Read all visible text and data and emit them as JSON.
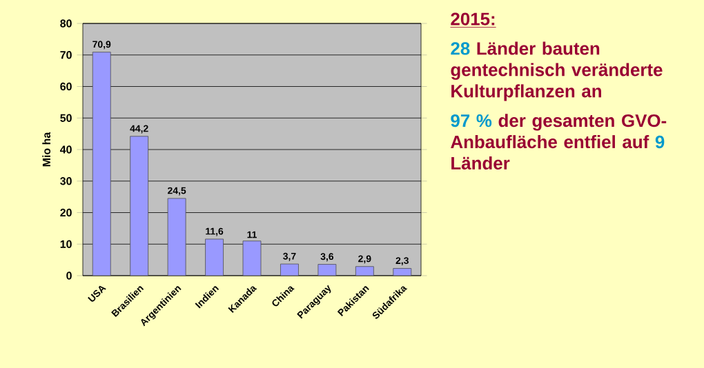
{
  "chart_data": {
    "type": "bar",
    "title": "2015:",
    "ylabel": "Mio ha",
    "categories": [
      "USA",
      "Brasilien",
      "Argentinien",
      "Indien",
      "Kanada",
      "China",
      "Paraguay",
      "Pakistan",
      "Südafrika"
    ],
    "values": [
      70.9,
      44.2,
      24.5,
      11.6,
      11,
      3.7,
      3.6,
      2.9,
      2.3
    ],
    "color": "#9999ff",
    "value_labels": [
      "70,9",
      "44,2",
      "24,5",
      "11,6",
      "11",
      "3,7",
      "3,6",
      "2,9",
      "2,3"
    ],
    "ylim": [
      0,
      80
    ],
    "yticks": [
      0,
      10,
      20,
      30,
      40,
      50,
      60,
      70,
      80
    ],
    "grid": "y",
    "annotations": [
      "28",
      "Länder bauten gentechnisch veränderte Kulturpflanzen an",
      "97 %",
      "der gesamten GVO-Anbaufläche entfiel auf",
      "9",
      "Länder"
    ]
  }
}
